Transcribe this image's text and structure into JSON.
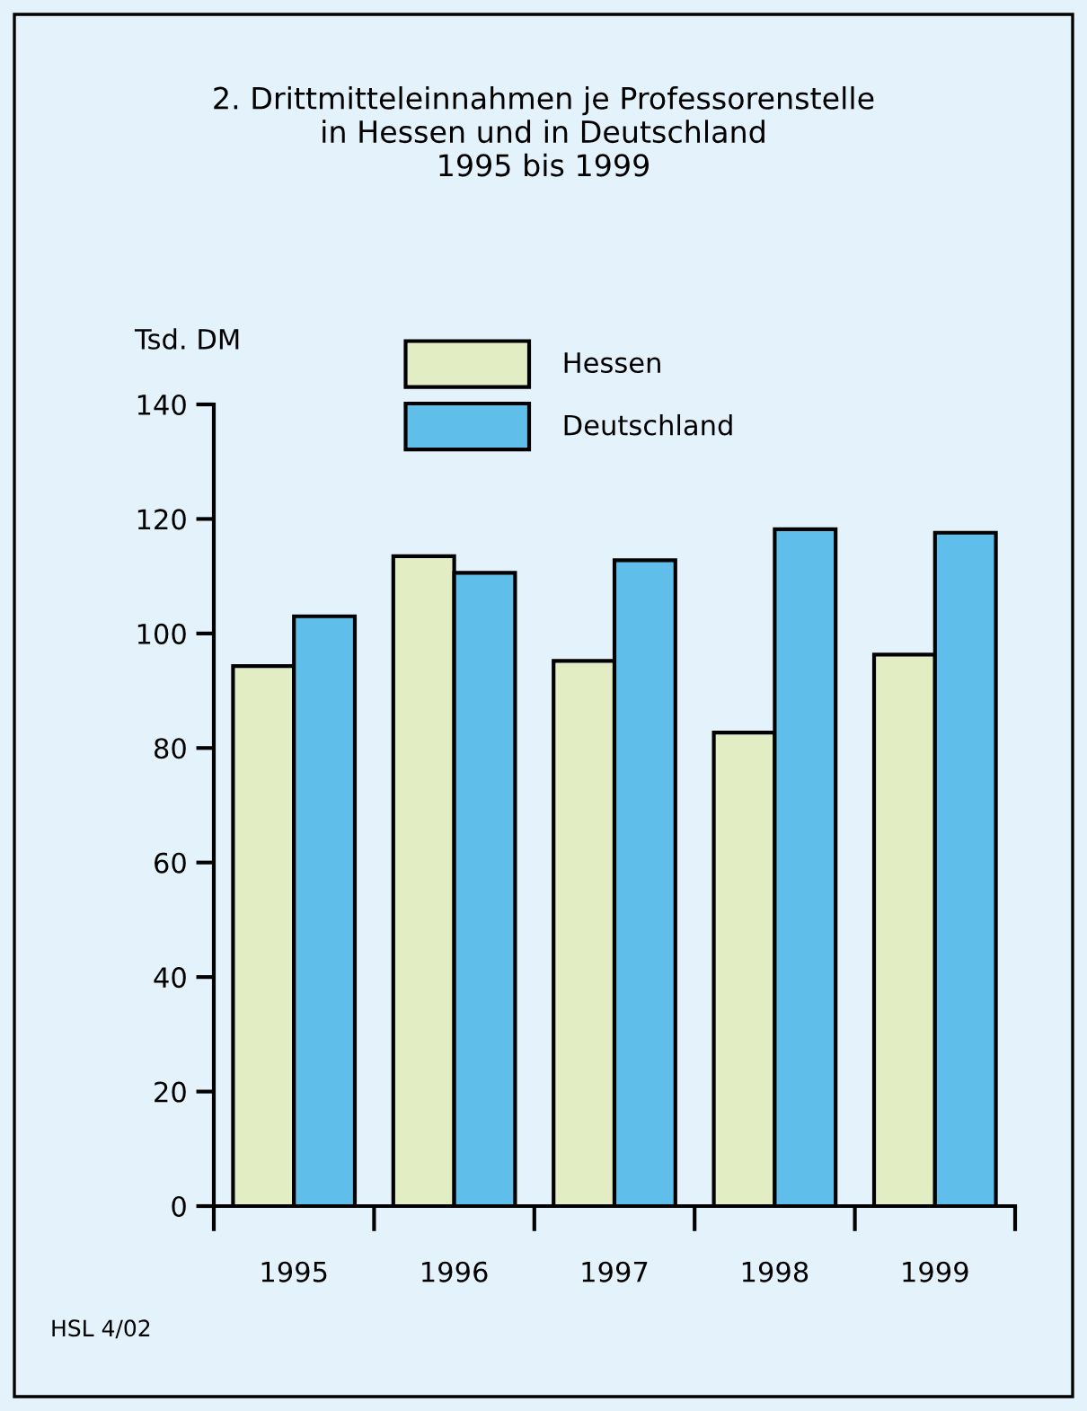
{
  "chart_data": {
    "type": "bar",
    "title": "2. Drittmitteleinnahmen je Professorenstelle\nin Hessen und in Deutschland\n1995 bis 1999",
    "ylabel": "Tsd. DM",
    "categories": [
      "1995",
      "1996",
      "1997",
      "1998",
      "1999"
    ],
    "series": [
      {
        "name": "Hessen",
        "color": "#e3edc4",
        "values": [
          94.3,
          113.5,
          95.2,
          82.7,
          96.3
        ]
      },
      {
        "name": "Deutschland",
        "color": "#5fbfea",
        "values": [
          103.0,
          110.6,
          112.8,
          118.2,
          117.6
        ]
      }
    ],
    "ylim": [
      0,
      140
    ],
    "yticks": [
      0,
      20,
      40,
      60,
      80,
      100,
      120,
      140
    ],
    "grid": false,
    "legend": "top",
    "annotations": [
      "HSL 4/02"
    ]
  }
}
